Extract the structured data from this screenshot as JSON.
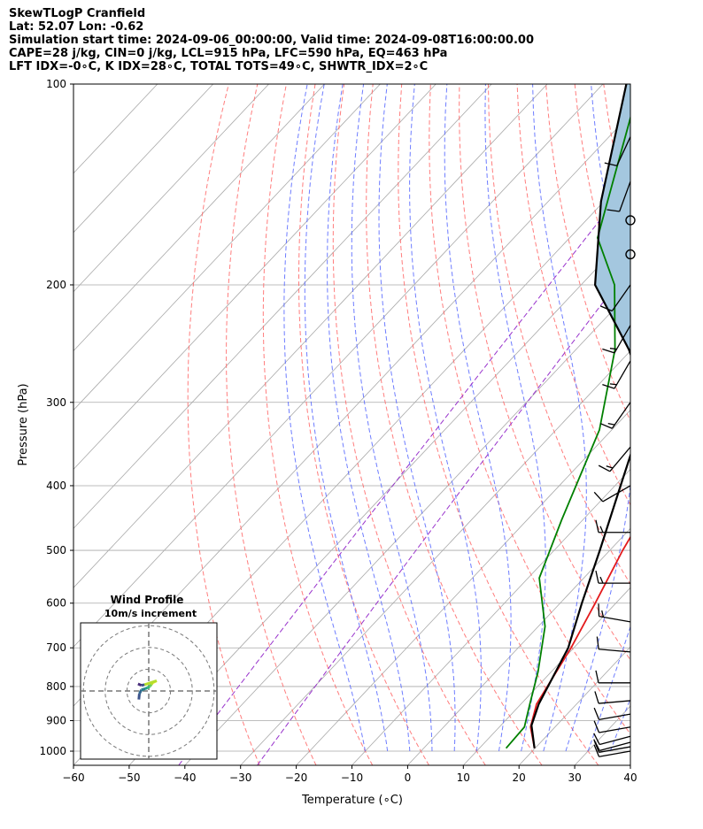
{
  "header": {
    "line1": "SkewTLogP Cranfield",
    "line2": "Lat: 52.07   Lon: -0.62",
    "line3": "Simulation start time: 2024-09-06_00:00:00, Valid time: 2024-09-08T16:00:00.00",
    "line4": "CAPE=28 j/kg, CIN=0 j/kg, LCL=915 hPa, LFC=590 hPa, EQ=463 hPa",
    "line5": "LFT IDX=-0∘C, K IDX=28∘C, TOTAL TOTS=49∘C, SHWTR_IDX=2∘C"
  },
  "chart_data": {
    "type": "line",
    "subtype": "skew-t log-p",
    "xlabel": "Temperature (∘C)",
    "ylabel": "Pressure (hPa)",
    "xlim": [
      -60,
      40
    ],
    "ylim": [
      1050,
      100
    ],
    "y_scale": "log",
    "grid": true,
    "x_ticks": [
      -60,
      -50,
      -40,
      -30,
      -20,
      -10,
      0,
      10,
      20,
      30,
      40
    ],
    "x_tick_labels": [
      "−60",
      "−50",
      "−40",
      "−30",
      "−20",
      "−10",
      "0",
      "10",
      "20",
      "30",
      "40"
    ],
    "y_ticks": [
      1000,
      900,
      800,
      700,
      600,
      500,
      400,
      300,
      200,
      100
    ],
    "y_tick_labels": [
      "1000",
      "900",
      "800",
      "700",
      "600",
      "500",
      "400",
      "300",
      "200",
      "100"
    ],
    "colors": {
      "temperature": "#e31a1c",
      "dewpoint": "#008000",
      "parcel": "#000000",
      "cape_fill": "#a4c7df",
      "dry_adiabat": "#ff6666",
      "moist_adiabat": "#5566ff",
      "mixing_ratio": "#9933cc",
      "isotherm": "#a9a9a9"
    },
    "series": [
      {
        "name": "temperature",
        "x_temp_c": [
          19.9,
          15.6,
          12.8,
          9.5,
          6.3,
          2.3,
          -1.8,
          -8.2,
          -19.2,
          -33.1,
          -48.0,
          -60.4
        ],
        "pressure_hpa": [
          990,
          920,
          850,
          700,
          600,
          500,
          400,
          300,
          250,
          200,
          150,
          100
        ]
      },
      {
        "name": "dewpoint",
        "x_temp_c": [
          14.8,
          14.5,
          11.6,
          7.6,
          1.2,
          -8.0,
          -13.8,
          -22.2,
          -33.0,
          -44.0,
          -55.0,
          -73.4
        ],
        "pressure_hpa": [
          990,
          920,
          850,
          760,
          650,
          550,
          450,
          330,
          250,
          200,
          170,
          100
        ]
      },
      {
        "name": "parcel",
        "x_temp_c": [
          19.9,
          15.5,
          13.2,
          9.0,
          3.9,
          -1.8,
          -9.0,
          -18.2,
          -30.5,
          -47.5,
          -60.5,
          -75.8
        ],
        "pressure_hpa": [
          990,
          915,
          850,
          700,
          600,
          500,
          400,
          300,
          250,
          200,
          150,
          100
        ]
      }
    ],
    "wind_barbs": {
      "pressure_hpa": [
        1000,
        985,
        970,
        950,
        920,
        880,
        840,
        790,
        710,
        640,
        560,
        470,
        400,
        350,
        300,
        260,
        230,
        200,
        180,
        160,
        140,
        120
      ],
      "speed_kt": [
        10,
        10,
        10,
        10,
        10,
        10,
        10,
        10,
        10,
        15,
        15,
        15,
        10,
        15,
        15,
        15,
        15,
        10,
        0,
        0,
        10,
        10
      ],
      "direction_deg": [
        260,
        260,
        255,
        255,
        260,
        260,
        265,
        270,
        275,
        280,
        270,
        270,
        240,
        220,
        215,
        210,
        210,
        215,
        0,
        0,
        200,
        205
      ]
    },
    "inset": {
      "title": "Wind Profile",
      "subtitle": "10m/s increment",
      "hodograph_points_ms": [
        [
          -3.5,
          -3.0
        ],
        [
          -3.3,
          -1.0
        ],
        [
          -2.6,
          0.4
        ],
        [
          -1.2,
          0.8
        ],
        [
          -0.6,
          1.1
        ],
        [
          0.4,
          1.6
        ],
        [
          0.9,
          2.3
        ],
        [
          1.4,
          2.9
        ],
        [
          2.2,
          3.3
        ],
        [
          2.8,
          3.6
        ],
        [
          -1.5,
          2.2
        ],
        [
          -2.6,
          2.0
        ],
        [
          -3.8,
          2.5
        ]
      ]
    }
  }
}
